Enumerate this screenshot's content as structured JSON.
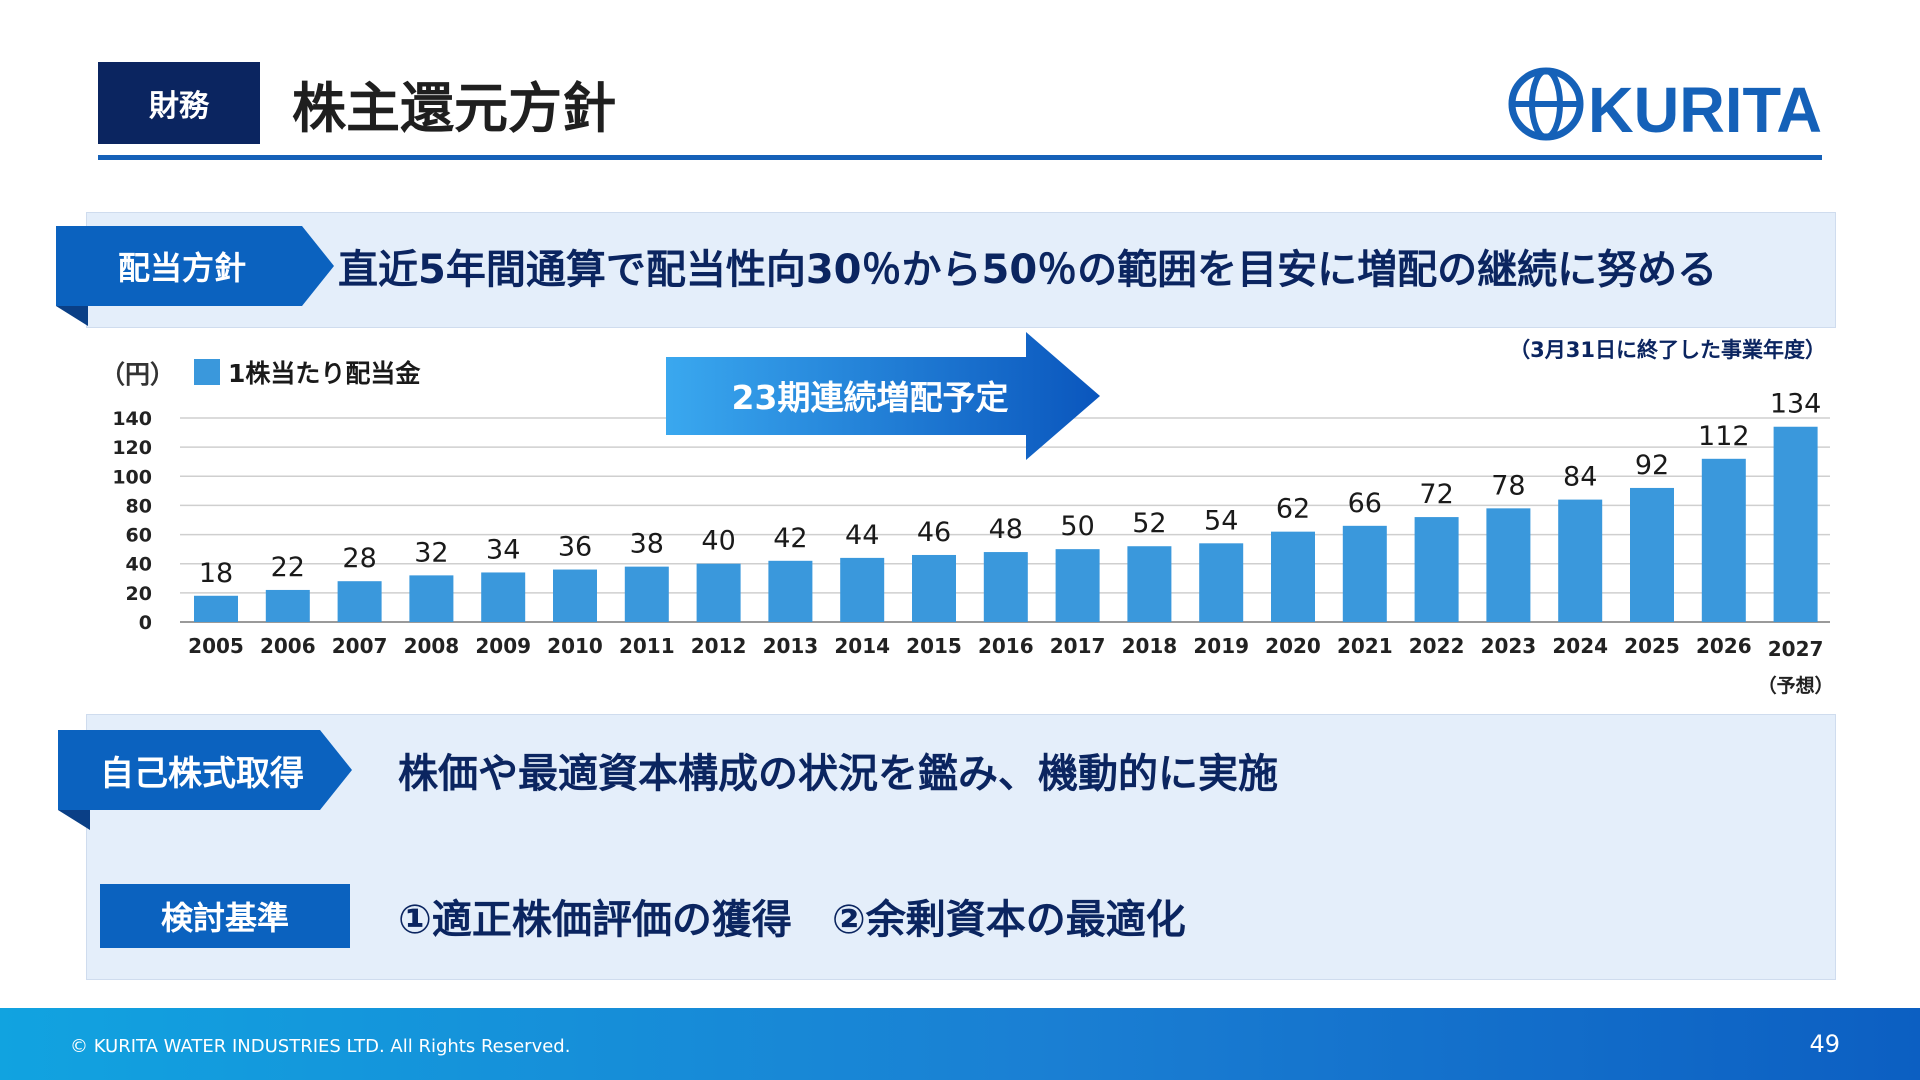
{
  "header": {
    "category": "財務",
    "title": "株主還元方針",
    "logo_text": "KURITA"
  },
  "dividend_policy": {
    "tag": "配当方針",
    "statement": "直近5年間通算で配当性向30％から50％の範囲を目安に増配の継続に努める"
  },
  "fiscal_note": "（3月31日に終了した事業年度）",
  "banner": "23期連続増配予定",
  "chart_data": {
    "type": "bar",
    "unit_label": "（円）",
    "legend": [
      "1株当たり配当金"
    ],
    "legend_placement": "top-left",
    "categories": [
      "2005",
      "2006",
      "2007",
      "2008",
      "2009",
      "2010",
      "2011",
      "2012",
      "2013",
      "2014",
      "2015",
      "2016",
      "2017",
      "2018",
      "2019",
      "2020",
      "2021",
      "2022",
      "2023",
      "2024",
      "2025",
      "2026",
      "2027"
    ],
    "category_notes": {
      "2027": "（予想）"
    },
    "series": [
      {
        "name": "1株当たり配当金",
        "values": [
          18,
          22,
          28,
          32,
          34,
          36,
          38,
          40,
          42,
          44,
          46,
          48,
          50,
          52,
          54,
          62,
          66,
          72,
          78,
          84,
          92,
          112,
          134
        ]
      }
    ],
    "yticks": [
      0,
      20,
      40,
      60,
      80,
      100,
      120,
      140
    ],
    "ylim": [
      0,
      140
    ],
    "grid": true,
    "bar_color": "#3a98dc"
  },
  "buyback_policy": {
    "tag": "自己株式取得",
    "statement": "株価や最適資本構成の状況を鑑み、機動的に実施",
    "criteria_tag": "検討基準",
    "criteria": "①適正株価評価の獲得　②余剰資本の最適化"
  },
  "footer": {
    "copyright": "© KURITA WATER INDUSTRIES LTD. All Rights Reserved.",
    "page_number": "49"
  },
  "colors": {
    "navy": "#0b2560",
    "brand_blue": "#1561b8",
    "panel_bg": "#e4eefa"
  }
}
